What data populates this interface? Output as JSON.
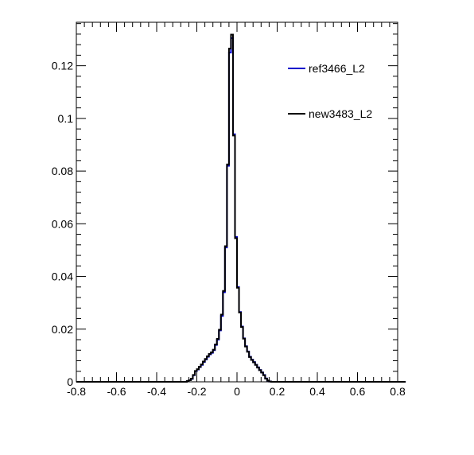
{
  "chart_data": {
    "type": "step-histogram",
    "title": "",
    "xlabel": "",
    "ylabel": "",
    "xlim": [
      -0.8,
      0.8
    ],
    "ylim": [
      0,
      0.1365
    ],
    "grid": false,
    "legend_position": "top-right",
    "x_ticks": [
      -0.8,
      -0.6,
      -0.4,
      -0.2,
      0,
      0.2,
      0.4,
      0.6,
      0.8
    ],
    "x_tick_labels": [
      "-0.8",
      "-0.6",
      "-0.4",
      "-0.2",
      "0",
      "0.2",
      "0.4",
      "0.6",
      "0.8"
    ],
    "y_ticks": [
      0,
      0.02,
      0.04,
      0.06,
      0.08,
      0.1,
      0.12
    ],
    "y_tick_labels": [
      "0",
      "0.02",
      "0.04",
      "0.06",
      "0.08",
      "0.1",
      "0.12"
    ],
    "bin_width": 0.01,
    "bin_start": -0.8,
    "series": [
      {
        "name": "ref3466_L2",
        "color": "#0000cc",
        "values": [
          0,
          0,
          0,
          0,
          0,
          0,
          0,
          0,
          0,
          0,
          0,
          0,
          0,
          0,
          0,
          0,
          0,
          0,
          0,
          0,
          0,
          0,
          0,
          0,
          0,
          0,
          0,
          0,
          0,
          0,
          0,
          0,
          0,
          0,
          0,
          0,
          0,
          0,
          0,
          0,
          0,
          0,
          0,
          0,
          0,
          0,
          0,
          0,
          0,
          0,
          0,
          0,
          0,
          0,
          0,
          0.0003,
          0.0006,
          0.0011,
          0.0025,
          0.004,
          0.0047,
          0.0056,
          0.0064,
          0.0075,
          0.0085,
          0.0095,
          0.0104,
          0.011,
          0.012,
          0.014,
          0.016,
          0.0195,
          0.025,
          0.034,
          0.051,
          0.082,
          0.125,
          0.1305,
          0.094,
          0.055,
          0.036,
          0.0265,
          0.021,
          0.0165,
          0.0135,
          0.0115,
          0.0095,
          0.0084,
          0.0075,
          0.0065,
          0.0055,
          0.0045,
          0.0036,
          0.0026,
          0.0013,
          0.0005,
          0.0001,
          0,
          0,
          0,
          0,
          0,
          0,
          0,
          0,
          0,
          0,
          0,
          0,
          0,
          0,
          0,
          0,
          0,
          0,
          0,
          0,
          0,
          0,
          0,
          0,
          0,
          0,
          0,
          0,
          0,
          0,
          0,
          0,
          0,
          0,
          0,
          0,
          0,
          0,
          0,
          0,
          0,
          0,
          0,
          0,
          0,
          0,
          0,
          0,
          0,
          0,
          0,
          0,
          0,
          0,
          0,
          0,
          0,
          0,
          0,
          0,
          0,
          0,
          0,
          0,
          0,
          0,
          0
        ]
      },
      {
        "name": "new3483_L2",
        "color": "#000000",
        "values": [
          0,
          0,
          0,
          0,
          0,
          0,
          0,
          0,
          0,
          0,
          0,
          0,
          0,
          0,
          0,
          0,
          0,
          0,
          0,
          0,
          0,
          0,
          0,
          0,
          0,
          0,
          0,
          0,
          0,
          0,
          0,
          0,
          0,
          0,
          0,
          0,
          0,
          0,
          0,
          0,
          0,
          0,
          0,
          0,
          0,
          0,
          0,
          0,
          0,
          0,
          0,
          0,
          0,
          0,
          0,
          0.0003,
          0.0006,
          0.0012,
          0.0026,
          0.0041,
          0.0048,
          0.0057,
          0.0066,
          0.0077,
          0.0087,
          0.0097,
          0.0106,
          0.0112,
          0.0122,
          0.0142,
          0.0163,
          0.0198,
          0.0255,
          0.0345,
          0.0515,
          0.0825,
          0.1265,
          0.1318,
          0.0935,
          0.0545,
          0.0357,
          0.0263,
          0.0208,
          0.0164,
          0.0134,
          0.0114,
          0.0094,
          0.0083,
          0.0074,
          0.0064,
          0.0054,
          0.0044,
          0.0035,
          0.0025,
          0.0012,
          0.0005,
          0.0001,
          0,
          0,
          0,
          0,
          0,
          0,
          0,
          0,
          0,
          0,
          0,
          0,
          0,
          0,
          0,
          0,
          0,
          0,
          0,
          0,
          0,
          0,
          0,
          0,
          0,
          0,
          0,
          0,
          0,
          0,
          0,
          0,
          0,
          0,
          0,
          0,
          0,
          0,
          0,
          0,
          0,
          0,
          0,
          0,
          0,
          0,
          0,
          0,
          0,
          0,
          0,
          0,
          0,
          0,
          0,
          0,
          0,
          0,
          0,
          0,
          0,
          0,
          0,
          0,
          0,
          0,
          0
        ]
      }
    ]
  }
}
